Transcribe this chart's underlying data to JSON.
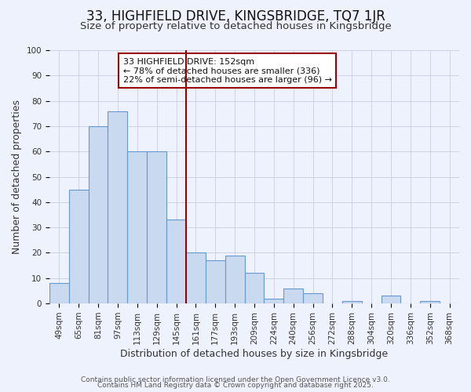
{
  "title": "33, HIGHFIELD DRIVE, KINGSBRIDGE, TQ7 1JR",
  "subtitle": "Size of property relative to detached houses in Kingsbridge",
  "xlabel": "Distribution of detached houses by size in Kingsbridge",
  "ylabel": "Number of detached properties",
  "bar_labels": [
    "49sqm",
    "65sqm",
    "81sqm",
    "97sqm",
    "113sqm",
    "129sqm",
    "145sqm",
    "161sqm",
    "177sqm",
    "193sqm",
    "209sqm",
    "224sqm",
    "240sqm",
    "256sqm",
    "272sqm",
    "288sqm",
    "304sqm",
    "320sqm",
    "336sqm",
    "352sqm",
    "368sqm"
  ],
  "bar_values": [
    8,
    45,
    70,
    76,
    60,
    60,
    33,
    20,
    17,
    19,
    12,
    2,
    6,
    4,
    0,
    1,
    0,
    3,
    0,
    1,
    0
  ],
  "bar_color": "#c9d9f0",
  "bar_edge_color": "#6699cc",
  "ylim": [
    0,
    100
  ],
  "vline_idx": 7,
  "vline_color": "#990000",
  "annotation_text": "33 HIGHFIELD DRIVE: 152sqm\n← 78% of detached houses are smaller (336)\n22% of semi-detached houses are larger (96) →",
  "annotation_box_color": "#ffffff",
  "annotation_box_edge": "#990000",
  "footer1": "Contains HM Land Registry data © Crown copyright and database right 2025.",
  "footer2": "Contains public sector information licensed under the Open Government Licence v3.0.",
  "bg_color": "#eef2fc",
  "grid_color": "#c8cee0",
  "title_fontsize": 12,
  "subtitle_fontsize": 9.5,
  "axis_label_fontsize": 9,
  "tick_fontsize": 7.5,
  "annotation_fontsize": 8,
  "footer_fontsize": 6.5
}
